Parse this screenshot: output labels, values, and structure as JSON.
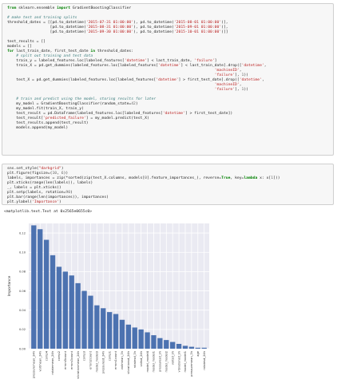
{
  "cell1": {
    "lines": [
      {
        "parts": [
          {
            "t": "from",
            "c": "kw"
          },
          {
            "t": " sklearn.ensemble "
          },
          {
            "t": "import",
            "c": "kw"
          },
          {
            "t": " GradientBoostingClassifier"
          }
        ]
      },
      {
        "parts": [
          {
            "t": ""
          }
        ]
      },
      {
        "parts": [
          {
            "t": "# make test and training splits",
            "c": "cm"
          }
        ]
      },
      {
        "parts": [
          {
            "t": "threshold_dates = [[pd.to_datetime("
          },
          {
            "t": "'2015-07-31 01:00:00'",
            "c": "st"
          },
          {
            "t": "), pd.to_datetime("
          },
          {
            "t": "'2015-08-01 01:00:00'",
            "c": "st"
          },
          {
            "t": ")],"
          }
        ]
      },
      {
        "parts": [
          {
            "t": "                   [pd.to_datetime("
          },
          {
            "t": "'2015-08-31 01:00:00'",
            "c": "st"
          },
          {
            "t": "), pd.to_datetime("
          },
          {
            "t": "'2015-09-01 01:00:00'",
            "c": "st"
          },
          {
            "t": ")],"
          }
        ]
      },
      {
        "parts": [
          {
            "t": "                   [pd.to_datetime("
          },
          {
            "t": "'2015-09-30 01:00:00'",
            "c": "st"
          },
          {
            "t": "), pd.to_datetime("
          },
          {
            "t": "'2015-10-01 01:00:00'",
            "c": "st"
          },
          {
            "t": ")]]"
          }
        ]
      },
      {
        "parts": [
          {
            "t": ""
          }
        ]
      },
      {
        "parts": [
          {
            "t": "test_results = []"
          }
        ]
      },
      {
        "parts": [
          {
            "t": "models = []"
          }
        ]
      },
      {
        "parts": [
          {
            "t": "for",
            "c": "kw"
          },
          {
            "t": " last_train_date, first_test_date "
          },
          {
            "t": "in",
            "c": "kw"
          },
          {
            "t": " threshold_dates:"
          }
        ]
      },
      {
        "parts": [
          {
            "t": "    # split out training and test data",
            "c": "cm"
          }
        ]
      },
      {
        "parts": [
          {
            "t": "    train_y = labeled_features.loc[labeled_features["
          },
          {
            "t": "'datetime'",
            "c": "st"
          },
          {
            "t": "] < last_train_date, "
          },
          {
            "t": "'failure'",
            "c": "st"
          },
          {
            "t": "]"
          }
        ]
      },
      {
        "parts": [
          {
            "t": "    train_X = pd.get_dummies(labeled_features.loc[labeled_features["
          },
          {
            "t": "'datetime'",
            "c": "st"
          },
          {
            "t": "] < last_train_date].drop(["
          },
          {
            "t": "'datetime'",
            "c": "st"
          },
          {
            "t": ","
          }
        ]
      },
      {
        "parts": [
          {
            "t": "                                                                                            "
          },
          {
            "t": "'machineID'",
            "c": "st"
          },
          {
            "t": ","
          }
        ]
      },
      {
        "parts": [
          {
            "t": "                                                                                            "
          },
          {
            "t": "'failure'",
            "c": "st"
          },
          {
            "t": "], "
          },
          {
            "t": "1",
            "c": "nm"
          },
          {
            "t": "))"
          }
        ]
      },
      {
        "parts": [
          {
            "t": "    test_X = pd.get_dummies(labeled_features.loc[labeled_features["
          },
          {
            "t": "'datetime'",
            "c": "st"
          },
          {
            "t": "] > first_test_date].drop(["
          },
          {
            "t": "'datetime'",
            "c": "st"
          },
          {
            "t": ","
          }
        ]
      },
      {
        "parts": [
          {
            "t": "                                                                                            "
          },
          {
            "t": "'machineID'",
            "c": "st"
          },
          {
            "t": ","
          }
        ]
      },
      {
        "parts": [
          {
            "t": "                                                                                            "
          },
          {
            "t": "'failure'",
            "c": "st"
          },
          {
            "t": "], "
          },
          {
            "t": "1",
            "c": "nm"
          },
          {
            "t": "))"
          }
        ]
      },
      {
        "parts": [
          {
            "t": ""
          }
        ]
      },
      {
        "parts": [
          {
            "t": "    # train and predict using the model, storing results for later",
            "c": "cm"
          }
        ]
      },
      {
        "parts": [
          {
            "t": "    my_model = GradientBoostingClassifier(random_state="
          },
          {
            "t": "42",
            "c": "nm"
          },
          {
            "t": ")"
          }
        ]
      },
      {
        "parts": [
          {
            "t": "    my_model.fit(train_X, train_y)"
          }
        ]
      },
      {
        "parts": [
          {
            "t": "    test_result = pd.DataFrame(labeled_features.loc[labeled_features["
          },
          {
            "t": "'datetime'",
            "c": "st"
          },
          {
            "t": "] > first_test_date])"
          }
        ]
      },
      {
        "parts": [
          {
            "t": "    test_result["
          },
          {
            "t": "'predicted_failure'",
            "c": "st"
          },
          {
            "t": "] = my_model.predict(test_X)"
          }
        ]
      },
      {
        "parts": [
          {
            "t": "    test_results.append(test_result)"
          }
        ]
      },
      {
        "parts": [
          {
            "t": "    models.append(my_model)"
          }
        ]
      }
    ]
  },
  "cell2": {
    "lines": [
      {
        "parts": [
          {
            "t": "sns.set_style("
          },
          {
            "t": "\"darkgrid\"",
            "c": "st"
          },
          {
            "t": ")"
          }
        ]
      },
      {
        "parts": [
          {
            "t": "plt.figure(figsize=("
          },
          {
            "t": "10",
            "c": "nm"
          },
          {
            "t": ", "
          },
          {
            "t": "6",
            "c": "nm"
          },
          {
            "t": "))"
          }
        ]
      },
      {
        "parts": [
          {
            "t": "labels, importances = zip(*sorted(zip(test_X.columns, models["
          },
          {
            "t": "0",
            "c": "nm"
          },
          {
            "t": "].feature_importances_), reverse="
          },
          {
            "t": "True",
            "c": "kw"
          },
          {
            "t": ", key="
          },
          {
            "t": "lambda",
            "c": "kw"
          },
          {
            "t": " x: x["
          },
          {
            "t": "1",
            "c": "nm"
          },
          {
            "t": "]))"
          }
        ]
      },
      {
        "parts": [
          {
            "t": "plt.xticks(range(len(labels)), labels)"
          }
        ]
      },
      {
        "parts": [
          {
            "t": "_, labels = plt.xticks()"
          }
        ]
      },
      {
        "parts": [
          {
            "t": "plt.setp(labels, rotation="
          },
          {
            "t": "90",
            "c": "nm"
          },
          {
            "t": ")"
          }
        ]
      },
      {
        "parts": [
          {
            "t": "plt.bar(range(len(importances)), importances)"
          }
        ]
      },
      {
        "parts": [
          {
            "t": "plt.ylabel("
          },
          {
            "t": "'Importance'",
            "c": "st"
          },
          {
            "t": ")"
          }
        ]
      }
    ]
  },
  "output_text": "<matplotlib.text.Text at 0x2565e0655c0>",
  "chart_data": {
    "type": "bar",
    "ylabel": "Importance",
    "ylim": [
      0,
      0.13
    ],
    "yticks": [
      "0.00",
      "0.02",
      "0.04",
      "0.06",
      "0.08",
      "0.10",
      "0.12"
    ],
    "grid": true,
    "bar_color": "#4c72b0",
    "background": "#eaeaf2",
    "categories": [
      "pressuremean_24h",
      "voltmean_24h",
      "comp4",
      "rotatemean_24h",
      "comp2",
      "errors5count",
      "errors3count",
      "vibrationmean_24h",
      "comp3",
      "errors2count",
      "model_model3",
      "pressuresd_24h",
      "comp1",
      "errors1count",
      "voltmean_3h",
      "vibrationsd_24h",
      "rotatesd_3h",
      "voltsd_24h",
      "model_model4",
      "model_model1",
      "pressuresd_3h",
      "model_model2",
      "voltsd_3h",
      "vibrationsd_3h",
      "model_model1",
      "pressuremean_3h",
      "age",
      "rotatesd_24h"
    ],
    "values": [
      0.128,
      0.124,
      0.113,
      0.097,
      0.085,
      0.08,
      0.076,
      0.068,
      0.06,
      0.055,
      0.045,
      0.042,
      0.038,
      0.036,
      0.03,
      0.025,
      0.022,
      0.02,
      0.017,
      0.014,
      0.011,
      0.009,
      0.007,
      0.005,
      0.003,
      0.002,
      0.001,
      0.001
    ]
  }
}
